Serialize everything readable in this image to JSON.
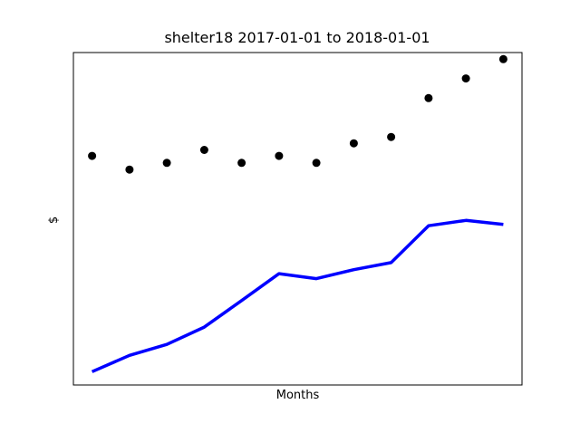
{
  "chart_data": {
    "type": "line",
    "title": "shelter18 2017-01-01 to 2018-01-01",
    "xlabel": "Months",
    "ylabel": "$",
    "x": [
      1,
      2,
      3,
      4,
      5,
      6,
      7,
      8,
      9,
      10,
      11,
      12
    ],
    "series": [
      {
        "style": "scatter",
        "color": "#000000",
        "values": [
          68.9,
          64.8,
          66.8,
          70.7,
          66.8,
          68.9,
          66.8,
          72.7,
          74.6,
          86.3,
          92.2,
          98.0
        ]
      },
      {
        "style": "line",
        "color": "#0000ff",
        "values": [
          4.0,
          8.9,
          12.2,
          17.4,
          25.4,
          33.5,
          32.0,
          34.7,
          36.8,
          47.9,
          49.5,
          48.3
        ]
      }
    ],
    "xlim": [
      0.5,
      12.5
    ],
    "ylim": [
      0,
      100
    ],
    "xticks": "none",
    "yticks": "none",
    "grid": false,
    "legend": "none"
  }
}
